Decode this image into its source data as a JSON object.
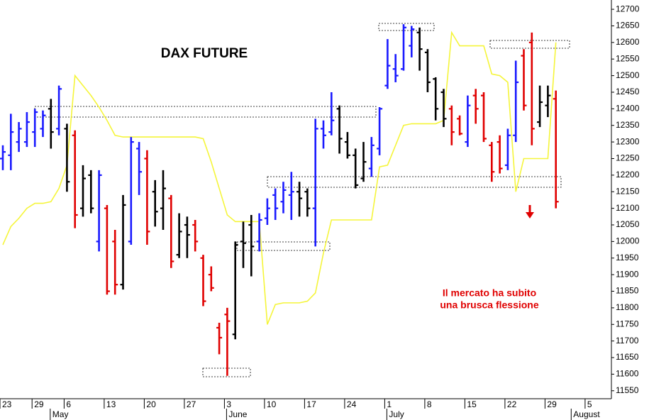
{
  "chart_data": {
    "type": "ohlc",
    "title": "DAX FUTURE",
    "annotation": [
      "Il mercato ha subito",
      "una brusca flessione"
    ],
    "categories": [
      "23",
      null,
      null,
      null,
      "29",
      null,
      null,
      null,
      "6",
      null,
      null,
      null,
      null,
      "13",
      null,
      null,
      null,
      null,
      "20",
      null,
      null,
      null,
      null,
      "27",
      null,
      null,
      null,
      null,
      "3",
      null,
      null,
      null,
      null,
      "10",
      null,
      null,
      null,
      null,
      "17",
      null,
      null,
      null,
      null,
      "24",
      null,
      null,
      null,
      null,
      "1",
      null,
      null,
      null,
      null,
      "8",
      null,
      null,
      null,
      null,
      "15",
      null,
      null,
      null,
      null,
      "22",
      null,
      null,
      null,
      null,
      "29",
      null,
      null,
      null,
      null,
      "5"
    ],
    "months": [
      null,
      null,
      null,
      null,
      null,
      null,
      "May",
      null,
      null,
      null,
      null,
      null,
      null,
      null,
      null,
      null,
      null,
      null,
      null,
      null,
      null,
      null,
      null,
      null,
      null,
      null,
      null,
      null,
      "June",
      null,
      null,
      null,
      null,
      null,
      null,
      null,
      null,
      null,
      null,
      null,
      null,
      null,
      null,
      null,
      null,
      null,
      null,
      null,
      "July",
      null,
      null,
      null,
      null,
      null,
      null,
      null,
      null,
      null,
      null,
      null,
      null,
      null,
      null,
      null,
      null,
      null,
      null,
      null,
      null,
      null,
      null,
      "August",
      null,
      null
    ],
    "ohlc": {
      "open": [
        12250,
        12260,
        12300,
        12300,
        12330,
        12340,
        12400,
        12340,
        12340,
        12320,
        12100,
        12200,
        12000,
        12100,
        12000,
        11870,
        12000,
        12280,
        12250,
        12150,
        12100,
        12130,
        11960,
        12050,
        12050,
        11950,
        11900,
        11740,
        11780,
        11720,
        12000,
        12050,
        12000,
        12070,
        12140,
        12120,
        12140,
        12150,
        12150,
        12100,
        12340,
        12330,
        12400,
        12300,
        12260,
        12190,
        12220,
        12280,
        12470,
        12520,
        12520,
        12590,
        12630,
        12570,
        12490,
        12450,
        12400,
        12370,
        12300,
        12440,
        12440,
        12290,
        12300,
        12230,
        12320,
        12560,
        12600,
        12360,
        12410,
        12430,
        null,
        null,
        null,
        null
      ],
      "high": [
        12290,
        12385,
        12360,
        12390,
        12400,
        12395,
        12430,
        12470,
        12355,
        12335,
        12230,
        12215,
        12215,
        12110,
        12035,
        12140,
        12315,
        12300,
        12275,
        12185,
        12215,
        12140,
        12085,
        12075,
        12065,
        11960,
        11925,
        11755,
        11800,
        12000,
        12060,
        12080,
        12085,
        12130,
        12160,
        12180,
        12210,
        12180,
        12160,
        12370,
        12365,
        12450,
        12410,
        12330,
        12280,
        12300,
        12315,
        12405,
        12610,
        12565,
        12655,
        12650,
        12645,
        12580,
        12495,
        12460,
        12410,
        12380,
        12440,
        12460,
        12450,
        12300,
        12320,
        12340,
        12545,
        12580,
        12630,
        12470,
        12470,
        12455,
        null,
        null,
        null,
        null
      ],
      "low": [
        12215,
        12215,
        12270,
        12285,
        12285,
        12315,
        12280,
        12320,
        12150,
        12040,
        12075,
        12085,
        11970,
        11840,
        11840,
        11855,
        11990,
        12140,
        11990,
        12045,
        12035,
        11920,
        11950,
        11950,
        11970,
        11805,
        11850,
        11660,
        11595,
        11705,
        11920,
        11895,
        11970,
        12050,
        12065,
        12085,
        12065,
        12075,
        12075,
        11985,
        12280,
        12320,
        12265,
        12250,
        12160,
        12180,
        12195,
        12260,
        12460,
        12480,
        12515,
        12555,
        12515,
        12450,
        12365,
        12345,
        12290,
        12320,
        12285,
        12355,
        12300,
        12180,
        12205,
        12215,
        12300,
        12395,
        12290,
        12345,
        12375,
        12100,
        null,
        null,
        null,
        null
      ],
      "close": [
        12270,
        12330,
        12340,
        12360,
        12390,
        12380,
        12330,
        12460,
        12180,
        12080,
        12190,
        12100,
        12200,
        11850,
        11870,
        12110,
        12300,
        12210,
        12030,
        12090,
        12160,
        11940,
        12030,
        12020,
        12000,
        11820,
        11860,
        11710,
        11760,
        11990,
        11995,
        11985,
        12065,
        12100,
        12100,
        12155,
        12150,
        12130,
        12100,
        12340,
        12320,
        12365,
        12310,
        12260,
        12170,
        12240,
        12290,
        12400,
        12530,
        12500,
        12645,
        12640,
        12580,
        12480,
        12400,
        12370,
        12330,
        12325,
        12410,
        12400,
        12310,
        12210,
        12220,
        12320,
        12480,
        12410,
        12340,
        12420,
        12440,
        12120,
        null,
        null,
        null,
        null
      ],
      "colors": [
        "#1a1aff",
        "#1a1aff",
        "#1a1aff",
        "#1a1aff",
        "#1a1aff",
        "#1a1aff",
        "#000000",
        "#1a1aff",
        "#000000",
        "#e00000",
        "#000000",
        "#000000",
        "#1a1aff",
        "#e00000",
        "#e00000",
        "#000000",
        "#1a1aff",
        "#1a1aff",
        "#e00000",
        "#000000",
        "#000000",
        "#e00000",
        "#000000",
        "#000000",
        "#e00000",
        "#e00000",
        "#e00000",
        "#e00000",
        "#e00000",
        "#000000",
        "#000000",
        "#000000",
        "#1a1aff",
        "#1a1aff",
        "#1a1aff",
        "#1a1aff",
        "#1a1aff",
        "#000000",
        "#000000",
        "#1a1aff",
        "#1a1aff",
        "#1a1aff",
        "#000000",
        "#000000",
        "#000000",
        "#000000",
        "#1a1aff",
        "#1a1aff",
        "#1a1aff",
        "#1a1aff",
        "#1a1aff",
        "#1a1aff",
        "#000000",
        "#000000",
        "#000000",
        "#000000",
        "#e00000",
        "#e00000",
        "#1a1aff",
        "#e00000",
        "#e00000",
        "#e00000",
        "#e00000",
        "#1a1aff",
        "#1a1aff",
        "#e00000",
        "#e00000",
        "#000000",
        "#000000",
        "#e00000",
        null,
        null,
        null,
        null
      ]
    },
    "overlay": {
      "type": "line",
      "color": "#f5f53a",
      "values": [
        11990,
        12045,
        12070,
        12100,
        12115,
        12115,
        12120,
        12160,
        12230,
        12500,
        12470,
        12440,
        12405,
        12365,
        12320,
        12315,
        12315,
        12315,
        12315,
        12315,
        12315,
        12315,
        12315,
        12315,
        12315,
        12310,
        12240,
        12160,
        12080,
        12060,
        12060,
        12060,
        12060,
        11750,
        11810,
        11815,
        11815,
        11815,
        11820,
        11845,
        11965,
        12065,
        12065,
        12065,
        12065,
        12065,
        12065,
        12225,
        12230,
        12290,
        12350,
        12355,
        12355,
        12355,
        12355,
        12365,
        12630,
        12590,
        12590,
        12590,
        12590,
        12505,
        12500,
        12480,
        12150,
        12250,
        12250,
        12250,
        12250,
        12600,
        null,
        null,
        null,
        null
      ]
    },
    "ylim": [
      11526,
      12728
    ],
    "yticks": [
      11550,
      11600,
      11650,
      11700,
      11750,
      11800,
      11850,
      11900,
      11950,
      12000,
      12050,
      12100,
      12150,
      12200,
      12250,
      12300,
      12350,
      12400,
      12450,
      12500,
      12550,
      12600,
      12650,
      12700
    ],
    "grid": false
  }
}
